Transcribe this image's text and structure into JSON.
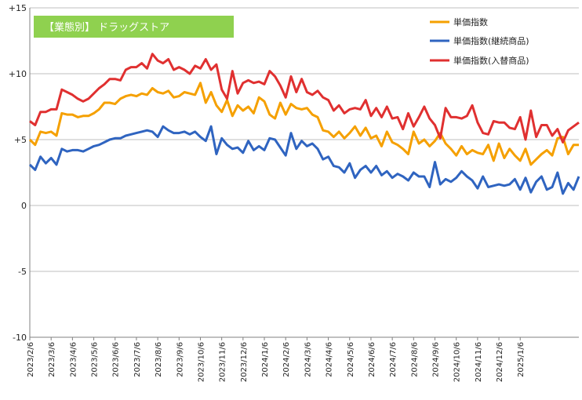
{
  "badge": {
    "text": "【業態別】 ドラッグストア",
    "color": "#8fd14f"
  },
  "chart_data": {
    "type": "line",
    "title": "",
    "xlabel": "",
    "ylabel": "",
    "ylim": [
      -10,
      15
    ],
    "yticks": [
      15,
      10,
      5,
      0,
      -5,
      -10
    ],
    "ytick_labels": [
      "+15",
      "+10",
      "+5",
      "0",
      "-5",
      "-10"
    ],
    "grid": true,
    "legend_position": "top-right",
    "xtick_labels": [
      "2023/2/6",
      "2023/3/6",
      "2023/4/6",
      "2023/5/6",
      "2023/6/6",
      "2023/7/6",
      "2023/8/6",
      "2023/9/6",
      "2023/10/6",
      "2023/11/6",
      "2023/12/6",
      "2024/1/6",
      "2024/2/6",
      "2024/3/6",
      "2024/4/6",
      "2024/5/6",
      "2024/6/6",
      "2024/7/6",
      "2024/8/6",
      "2024/9/6",
      "2024/10/6",
      "2024/11/6",
      "2024/12/6",
      "2025/1/6"
    ],
    "xtick_positions": [
      0,
      4,
      8,
      12,
      16,
      20,
      24,
      28,
      32,
      36,
      40,
      44,
      48,
      52,
      56,
      60,
      64,
      68,
      72,
      76,
      80,
      84,
      88,
      92
    ],
    "series": [
      {
        "name": "単価指数",
        "color": "#f5a000",
        "values": [
          5.0,
          4.6,
          5.6,
          5.5,
          5.6,
          5.3,
          7.0,
          6.9,
          6.9,
          6.7,
          6.8,
          6.8,
          7.0,
          7.3,
          7.8,
          7.8,
          7.7,
          8.1,
          8.3,
          8.4,
          8.3,
          8.5,
          8.4,
          8.9,
          8.6,
          8.5,
          8.7,
          8.2,
          8.3,
          8.6,
          8.5,
          8.4,
          9.3,
          7.8,
          8.6,
          7.6,
          7.1,
          8.0,
          6.8,
          7.6,
          7.2,
          7.5,
          7.0,
          8.2,
          7.9,
          6.9,
          6.6,
          7.8,
          6.9,
          7.7,
          7.4,
          7.3,
          7.4,
          6.9,
          6.7,
          5.7,
          5.6,
          5.2,
          5.6,
          5.1,
          5.5,
          6.0,
          5.3,
          5.9,
          5.1,
          5.3,
          4.5,
          5.6,
          4.8,
          4.6,
          4.3,
          3.9,
          5.6,
          4.7,
          5.0,
          4.5,
          4.9,
          5.5,
          4.7,
          4.3,
          3.8,
          4.5,
          3.9,
          4.2,
          4.0,
          3.9,
          4.6,
          3.4,
          4.7,
          3.6,
          4.3,
          3.8,
          3.4,
          4.3,
          3.1,
          3.5,
          3.9,
          4.2,
          3.8,
          5.1,
          5.2,
          3.9,
          4.6,
          4.6
        ]
      },
      {
        "name": "単価指数(継続商品)",
        "color": "#2f64c0",
        "values": [
          3.1,
          2.7,
          3.7,
          3.2,
          3.6,
          3.1,
          4.3,
          4.1,
          4.2,
          4.2,
          4.1,
          4.3,
          4.5,
          4.6,
          4.8,
          5.0,
          5.1,
          5.1,
          5.3,
          5.4,
          5.5,
          5.6,
          5.7,
          5.6,
          5.2,
          6.0,
          5.7,
          5.5,
          5.5,
          5.6,
          5.4,
          5.6,
          5.2,
          4.9,
          6.0,
          3.9,
          5.1,
          4.6,
          4.3,
          4.4,
          4.0,
          4.9,
          4.2,
          4.5,
          4.2,
          5.1,
          5.0,
          4.4,
          3.8,
          5.5,
          4.3,
          4.9,
          4.5,
          4.7,
          4.3,
          3.5,
          3.7,
          3.0,
          2.9,
          2.5,
          3.2,
          2.1,
          2.7,
          3.0,
          2.5,
          3.0,
          2.3,
          2.6,
          2.1,
          2.4,
          2.2,
          1.9,
          2.5,
          2.2,
          2.2,
          1.4,
          3.3,
          1.6,
          2.0,
          1.8,
          2.1,
          2.6,
          2.2,
          1.9,
          1.3,
          2.2,
          1.4,
          1.5,
          1.6,
          1.5,
          1.6,
          2.0,
          1.2,
          2.1,
          1.0,
          1.8,
          2.2,
          1.2,
          1.4,
          2.5,
          0.9,
          1.7,
          1.2,
          2.2
        ]
      },
      {
        "name": "単価指数(入替商品)",
        "color": "#e03030",
        "values": [
          6.4,
          6.1,
          7.1,
          7.1,
          7.3,
          7.3,
          8.8,
          8.6,
          8.4,
          8.1,
          7.9,
          8.1,
          8.5,
          8.9,
          9.2,
          9.6,
          9.6,
          9.5,
          10.3,
          10.5,
          10.5,
          10.8,
          10.4,
          11.5,
          11.0,
          10.8,
          11.1,
          10.3,
          10.5,
          10.3,
          10.0,
          10.6,
          10.4,
          11.1,
          10.3,
          10.7,
          8.8,
          8.1,
          10.2,
          8.5,
          9.3,
          9.5,
          9.3,
          9.4,
          9.2,
          10.2,
          9.8,
          9.1,
          8.2,
          9.8,
          8.6,
          9.6,
          8.6,
          8.4,
          8.7,
          8.2,
          8.0,
          7.2,
          7.6,
          7.0,
          7.3,
          7.4,
          7.3,
          8.0,
          6.8,
          7.4,
          6.7,
          7.5,
          6.6,
          6.7,
          5.8,
          7.0,
          6.0,
          6.7,
          7.5,
          6.6,
          6.1,
          5.1,
          7.4,
          6.7,
          6.7,
          6.6,
          6.8,
          7.6,
          6.3,
          5.5,
          5.4,
          6.4,
          6.3,
          6.3,
          5.9,
          5.8,
          6.7,
          5.0,
          7.2,
          5.2,
          6.1,
          6.1,
          5.3,
          5.8,
          4.8,
          5.7,
          6.0,
          6.3
        ]
      }
    ]
  }
}
